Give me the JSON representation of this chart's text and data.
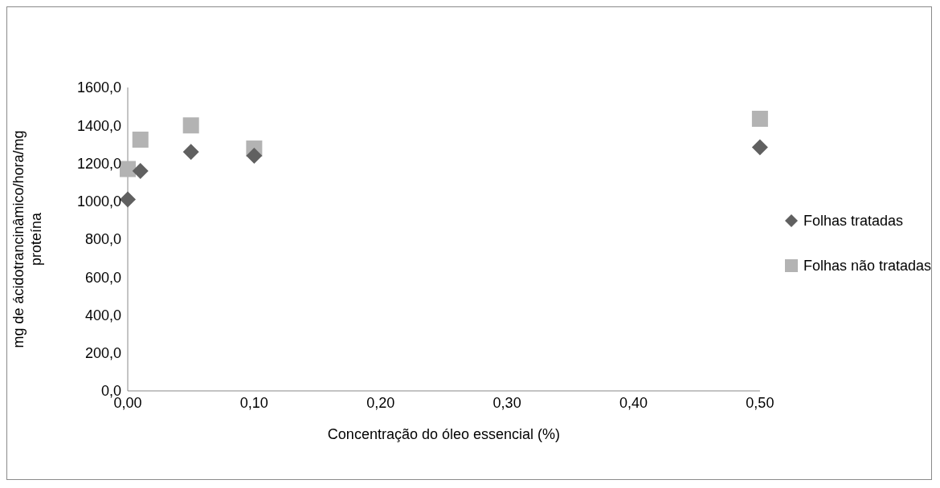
{
  "chart_data": {
    "type": "scatter",
    "xlabel": "Concentração do óleo essencial (%)",
    "ylabel": "mg de ácidotrancinâmico/hora/mg proteína",
    "xlim": [
      0,
      0.5
    ],
    "xticks": [
      {
        "value": 0,
        "label": "0,00"
      },
      {
        "value": 0.1,
        "label": "0,10"
      },
      {
        "value": 0.2,
        "label": "0,20"
      },
      {
        "value": 0.3,
        "label": "0,30"
      },
      {
        "value": 0.4,
        "label": "0,40"
      },
      {
        "value": 0.5,
        "label": "0,50"
      }
    ],
    "ylim": [
      0,
      1600
    ],
    "yticks": [
      {
        "value": 0,
        "label": "0,0"
      },
      {
        "value": 200,
        "label": "200,0"
      },
      {
        "value": 400,
        "label": "400,0"
      },
      {
        "value": 600,
        "label": "600,0"
      },
      {
        "value": 800,
        "label": "800,0"
      },
      {
        "value": 1000,
        "label": "1000,0"
      },
      {
        "value": 1200,
        "label": "1200,0"
      },
      {
        "value": 1400,
        "label": "1400,0"
      },
      {
        "value": 1600,
        "label": "1600,0"
      }
    ],
    "grid": false,
    "legend": "right",
    "series": [
      {
        "name": "Folhas tratadas",
        "color": "#606060",
        "marker": "diamond",
        "x": [
          0,
          0.01,
          0.05,
          0.1,
          0.5
        ],
        "values": [
          1010,
          1160,
          1260,
          1240,
          1285
        ]
      },
      {
        "name": "Folhas não tratadas",
        "color": "#b3b3b3",
        "marker": "square",
        "x": [
          0,
          0.01,
          0.05,
          0.1,
          0.5
        ],
        "values": [
          1170,
          1325,
          1400,
          1278,
          1435
        ]
      }
    ]
  }
}
